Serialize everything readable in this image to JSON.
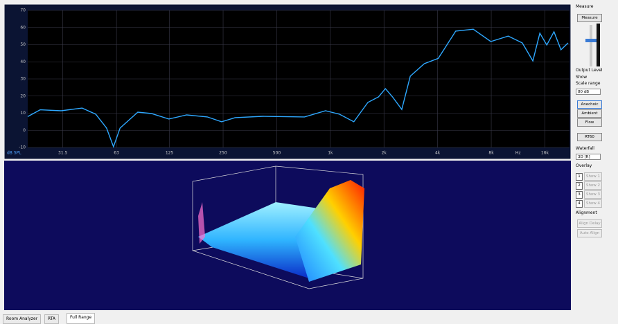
{
  "chart_data": {
    "type": "line",
    "y_label": "dB SPL",
    "x_unit_label": "Hz",
    "xscale": "log",
    "xlim": [
      20,
      22000
    ],
    "ylim": [
      -10,
      70
    ],
    "yticks": [
      -10,
      0,
      10,
      20,
      30,
      40,
      50,
      60,
      70
    ],
    "xticks": [
      31.5,
      63,
      125,
      250,
      500,
      {
        "value": 1000,
        "label": "1k"
      },
      {
        "value": 2000,
        "label": "2k"
      },
      {
        "value": 4000,
        "label": "4k"
      },
      {
        "value": 8000,
        "label": "8k"
      },
      {
        "value": 16000,
        "label": "16k"
      }
    ],
    "grid": true,
    "color": "#2ea8ff",
    "x": [
      20,
      23.5,
      30.8,
      40.4,
      48.2,
      55.4,
      60.6,
      66,
      83,
      99,
      124,
      156,
      204,
      245,
      292,
      419,
      716,
      940,
      1126,
      1354,
      1624,
      1862,
      2038,
      2234,
      2516,
      2809,
      3367,
      4035,
      5058,
      6344,
      7952,
      9970,
      11960,
      13700,
      15000,
      16400,
      18000,
      19700,
      21600
    ],
    "values": [
      8,
      12,
      11.4,
      13,
      9.4,
      1.3,
      -9.6,
      1.3,
      10.6,
      9.8,
      6.6,
      9,
      7.8,
      5,
      7.4,
      8.2,
      7.8,
      11.4,
      9.4,
      5,
      16.3,
      19.5,
      24.3,
      19.5,
      12.2,
      31.6,
      38.9,
      42,
      57.9,
      59,
      51.8,
      55,
      51,
      40.5,
      56.7,
      49.8,
      57.5,
      47,
      51
    ]
  },
  "side_panel": {
    "measure_title": "Measure",
    "measure_button": "Measure",
    "output_level": "Output Level",
    "show": "Show",
    "scale_range": "Scale range",
    "scale_value": "80 dB",
    "buttons": [
      "Anechoic",
      "Ambient",
      "Flow"
    ],
    "rt60": "RT60",
    "waterfall": "Waterfall",
    "waterfall_value": "3D [R]",
    "overlay": "Overlay",
    "overlays": [
      {
        "num": "1",
        "label": "Show 1"
      },
      {
        "num": "2",
        "label": "Show 2"
      },
      {
        "num": "3",
        "label": "Show 3"
      },
      {
        "num": "4",
        "label": "Show 4"
      }
    ],
    "alignment": "Alignment",
    "align_delay": "Align Delay",
    "auto_align": "Auto Align"
  },
  "tabs": [
    "Room Analyzer",
    "RTA",
    "Full Range"
  ]
}
